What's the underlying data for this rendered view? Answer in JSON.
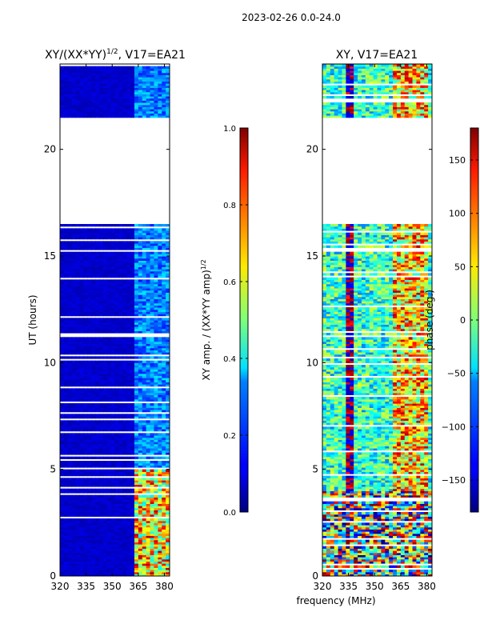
{
  "figure_title": "2023-02-26 0.0-24.0",
  "chart_data": [
    {
      "type": "heatmap",
      "title_prefix": "XY/(XX*YY)",
      "title_exp": "1/2",
      "title_suffix": ", V17=EA21",
      "ylabel": "UT (hours)",
      "xlabel": "",
      "xlim": [
        320,
        383
      ],
      "ylim": [
        0,
        24
      ],
      "xticks": [
        320,
        335,
        350,
        365,
        380
      ],
      "yticks": [
        0,
        5,
        10,
        15,
        20
      ],
      "data_gap_hours": [
        16.4,
        21.5
      ],
      "colorbar": {
        "label_text": "XY amp. / (XX*YY amp)",
        "label_exp": "1/2",
        "range": [
          0.0,
          1.0
        ],
        "ticks": [
          "0.0",
          "0.2",
          "0.4",
          "0.6",
          "0.8",
          "1.0"
        ],
        "colormap": "jet"
      }
    },
    {
      "type": "heatmap",
      "title": "XY, V17=EA21",
      "ylabel": "",
      "xlabel": "frequency (MHz)",
      "xlim": [
        320,
        383
      ],
      "ylim": [
        0,
        24
      ],
      "xticks": [
        320,
        335,
        350,
        365,
        380
      ],
      "yticks": [
        0,
        5,
        10,
        15,
        20
      ],
      "data_gap_hours": [
        16.4,
        21.5
      ],
      "colorbar": {
        "label_text": "phase (deg.)",
        "range": [
          -180,
          180
        ],
        "ticks": [
          "−150",
          "−100",
          "−50",
          "0",
          "50",
          "100",
          "150"
        ],
        "colormap": "jet"
      }
    }
  ]
}
